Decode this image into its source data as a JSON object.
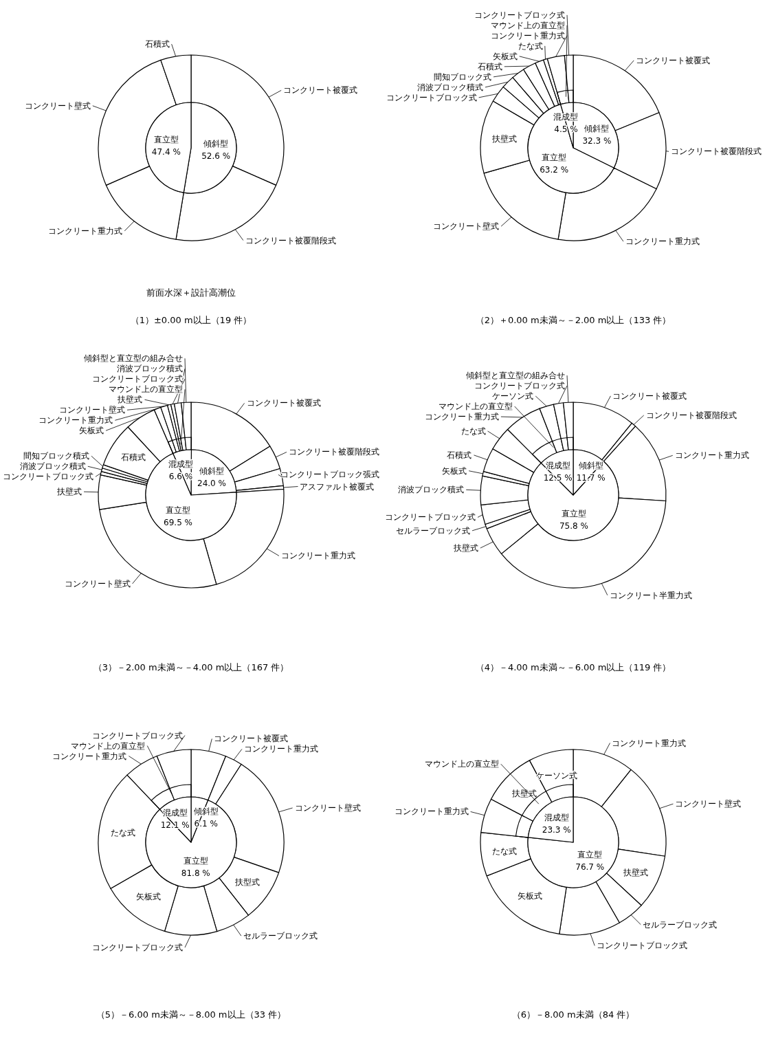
{
  "chart_data": [
    {
      "type": "donut",
      "title": "（1）±0.00 m以上（19 件）",
      "annotations": [
        "前面水深＋設計高潮位"
      ],
      "categories": [
        "コンクリート被覆式",
        "コンクリート被覆階段式",
        "コンクリート重力式",
        "コンクリート壁式",
        "石積式"
      ],
      "values": [
        31.6,
        21.0,
        15.8,
        26.3,
        5.3
      ]
    },
    {
      "type": "pie",
      "categories": [
        "傾斜型",
        "直立型"
      ],
      "values": [
        52.6,
        47.4
      ],
      "value_labels": [
        "52.6 %",
        "47.4 %"
      ]
    },
    {
      "type": "donut",
      "title": "（2）＋0.00 m未満～－2.00 m以上（133 件）",
      "categories": [
        "コンクリート被覆式",
        "コンクリート被覆階段式",
        "コンクリート重力式",
        "コンクリート壁式",
        "扶壁式",
        "コンクリートブロック式",
        "消波ブロック積式",
        "間知ブロック式",
        "石積式",
        "矢板式",
        "たな式",
        "コンクリート重力式",
        "コンクリートブロック式"
      ],
      "values": [
        18.8,
        13.5,
        20.3,
        18.0,
        12.8,
        3.0,
        2.3,
        2.3,
        2.3,
        1.5,
        0.7,
        3.0,
        1.5
      ]
    },
    {
      "type": "pie",
      "categories": [
        "傾斜型",
        "直立型",
        "混成型"
      ],
      "values": [
        32.3,
        63.2,
        4.5
      ],
      "value_labels": [
        "32.3 %",
        "63.2 %",
        "4.5 %"
      ],
      "annotations": [
        {
          "text": "マウンド上の直立型",
          "x": "混成型"
        }
      ]
    },
    {
      "type": "donut",
      "title": "（3）－2.00 m未満～－4.00 m以上（167 件）",
      "categories": [
        "コンクリート被覆式",
        "コンクリート被覆階段式",
        "コンクリートブロック張式",
        "アスファルト被覆式",
        "コンクリート重力式",
        "コンクリート壁式",
        "扶壁式",
        "コンクリートブロック式",
        "消波ブロック積式",
        "間知ブロック積式",
        "石積式",
        "矢板式",
        "コンクリート重力式",
        "コンクリート壁式",
        "扶壁式",
        "コンクリートブロック式",
        "消波ブロック積式",
        "傾斜型と直立型の組み合せ"
      ],
      "values": [
        16.2,
        4.2,
        3.0,
        0.6,
        21.6,
        26.9,
        6.0,
        0.6,
        0.6,
        0.6,
        7.8,
        5.4,
        1.2,
        1.2,
        0.6,
        0.6,
        1.2,
        1.7
      ]
    },
    {
      "type": "pie",
      "categories": [
        "傾斜型",
        "直立型",
        "混成型"
      ],
      "values": [
        24.0,
        69.5,
        6.6
      ],
      "value_labels": [
        "24.0 %",
        "69.5 %",
        "6.6 %"
      ],
      "annotations": [
        {
          "text": "マウンド上の直立型",
          "x": "混成型"
        }
      ]
    },
    {
      "type": "donut",
      "title": "（4）－4.00 m未満～－6.00 m以上（119 件）",
      "categories": [
        "コンクリート被覆式",
        "コンクリート被覆階段式",
        "コンクリート重力式",
        "コンクリート半重力式",
        "扶壁式",
        "セルラーブロック式",
        "コンクリートブロック式",
        "消波ブロック積式",
        "矢板式",
        "石積式",
        "たな式",
        "コンクリート重力式",
        "ケーソン式",
        "コンクリートブロック式",
        "傾斜型と直立型の組み合せ"
      ],
      "values": [
        10.9,
        0.8,
        14.3,
        38.1,
        5.0,
        0.8,
        3.4,
        5.0,
        0.8,
        4.2,
        4.2,
        6.6,
        2.5,
        1.7,
        1.7
      ]
    },
    {
      "type": "pie",
      "categories": [
        "傾斜型",
        "直立型",
        "混成型"
      ],
      "values": [
        11.7,
        75.8,
        12.5
      ],
      "value_labels": [
        "11.7 %",
        "75.8 %",
        "12.5 %"
      ],
      "annotations": [
        {
          "text": "マウンド上の直立型",
          "x": "混成型"
        }
      ]
    },
    {
      "type": "donut",
      "title": "（5）－6.00 m未満～－8.00 m以上（33 件）",
      "categories": [
        "コンクリート被覆式",
        "コンクリート重力式",
        "コンクリート壁式",
        "扶型式",
        "セルラーブロック式",
        "コンクリートブロック式",
        "矢板式",
        "たな式",
        "コンクリート重力式",
        "コンクリートブロック式"
      ],
      "values": [
        6.1,
        3.0,
        21.2,
        9.1,
        6.1,
        9.1,
        12.1,
        21.2,
        6.1,
        6.0
      ]
    },
    {
      "type": "pie",
      "categories": [
        "傾斜型",
        "直立型",
        "混成型"
      ],
      "values": [
        6.1,
        81.8,
        12.1
      ],
      "value_labels": [
        "6.1 %",
        "81.8 %",
        "12.1 %"
      ],
      "annotations": [
        {
          "text": "マウンド上の直立型",
          "x": "混成型"
        }
      ]
    },
    {
      "type": "donut",
      "title": "（6）－8.00 m未満（84 件）",
      "categories": [
        "コンクリート重力式",
        "コンクリート壁式",
        "扶壁式",
        "セルラーブロック式",
        "コンクリートブロック式",
        "矢板式",
        "たな式",
        "コンクリート重力式",
        "扶壁式",
        "ケーソン式"
      ],
      "values": [
        10.7,
        16.7,
        9.5,
        4.8,
        10.7,
        16.7,
        7.6,
        6.0,
        9.5,
        7.8
      ]
    },
    {
      "type": "pie",
      "categories": [
        "直立型",
        "混成型"
      ],
      "values": [
        76.7,
        23.3
      ],
      "value_labels": [
        "76.7 %",
        "23.3 %"
      ],
      "annotations": [
        {
          "text": "マウンド上の直立型",
          "x": "混成型"
        }
      ]
    }
  ]
}
